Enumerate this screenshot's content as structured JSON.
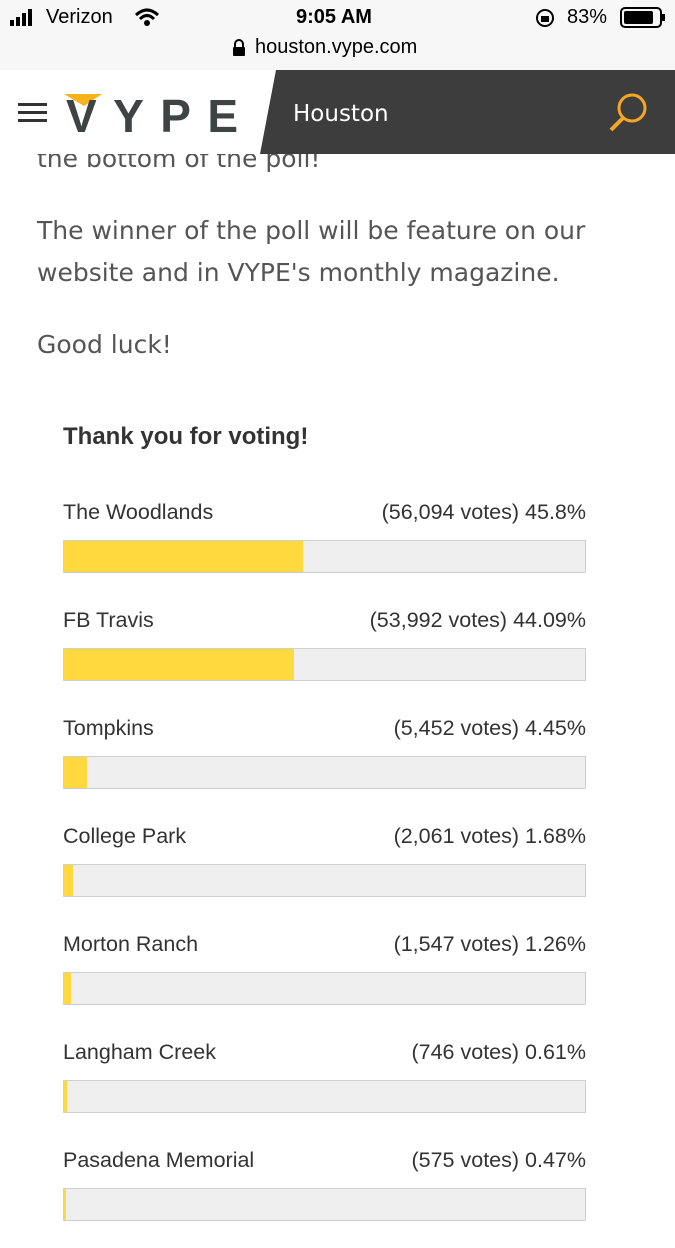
{
  "status": {
    "carrier": "Verizon",
    "time": "9:05 AM",
    "battery": "83%",
    "url": "houston.vype.com"
  },
  "header": {
    "logo": "VYPE",
    "city": "Houston"
  },
  "article": {
    "partial": "the bottom of the poll!",
    "paragraphs": [
      "The winner of the poll will be feature on our website and in VYPE's monthly magazine.",
      "Good luck!"
    ]
  },
  "poll": {
    "title": "Thank you for voting!",
    "options": [
      {
        "name": "The Woodlands",
        "votes_label": "(56,094 votes)",
        "percent": 45.8,
        "percent_label": "45.8%"
      },
      {
        "name": "FB Travis",
        "votes_label": "(53,992 votes)",
        "percent": 44.09,
        "percent_label": "44.09%"
      },
      {
        "name": "Tompkins",
        "votes_label": "(5,452 votes)",
        "percent": 4.45,
        "percent_label": "4.45%"
      },
      {
        "name": "College Park",
        "votes_label": "(2,061 votes)",
        "percent": 1.68,
        "percent_label": "1.68%"
      },
      {
        "name": "Morton Ranch",
        "votes_label": "(1,547 votes)",
        "percent": 1.26,
        "percent_label": "1.26%"
      },
      {
        "name": "Langham Creek",
        "votes_label": "(746 votes)",
        "percent": 0.61,
        "percent_label": "0.61%"
      },
      {
        "name": "Pasadena Memorial",
        "votes_label": "(575 votes)",
        "percent": 0.47,
        "percent_label": "0.47%"
      }
    ]
  }
}
